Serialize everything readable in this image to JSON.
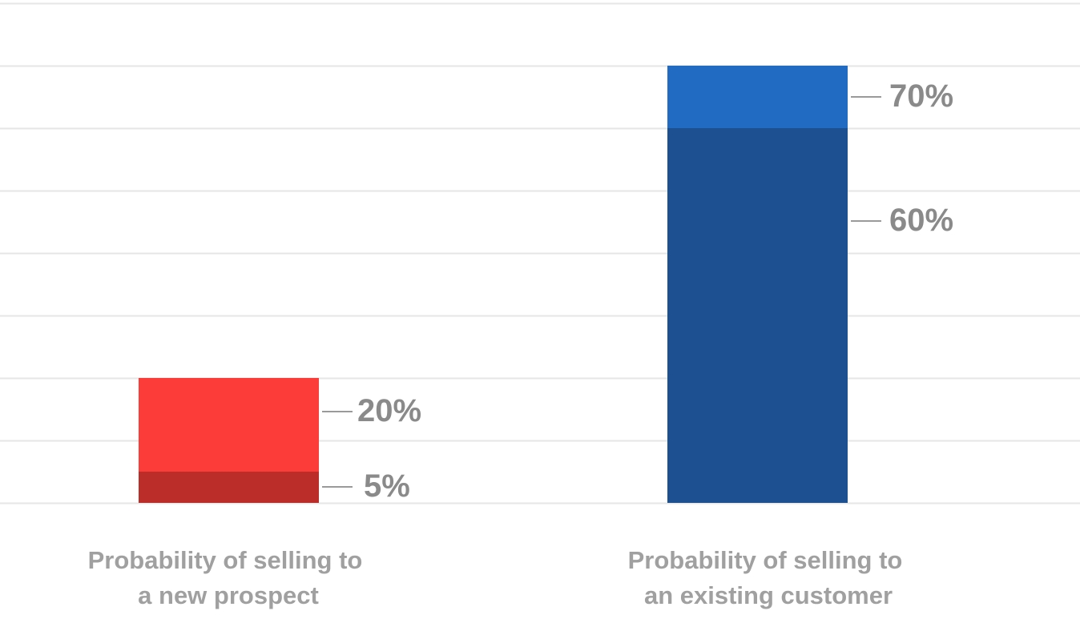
{
  "chart_data": {
    "type": "bar",
    "title": "",
    "xlabel": "",
    "ylabel": "",
    "ylim": [
      0,
      70
    ],
    "grid": true,
    "categories": [
      [
        "Probability of selling to",
        "a new prospect"
      ],
      [
        "Probability of selling to",
        "an existing customer"
      ]
    ],
    "bars": [
      {
        "low": 5,
        "high": 20,
        "low_label": "5%",
        "high_label": "20%",
        "low_color": "#BA2D29",
        "high_color": "#FB3C38"
      },
      {
        "low": 60,
        "high": 70,
        "low_label": "60%",
        "high_label": "70%",
        "low_color": "#1C5090",
        "high_color": "#226BC2"
      }
    ],
    "colors": {
      "grid": "#E6E6E6",
      "label": "#8A8A8A",
      "category_label": "#A0A0A0",
      "leader": "#9A9A9A"
    }
  }
}
